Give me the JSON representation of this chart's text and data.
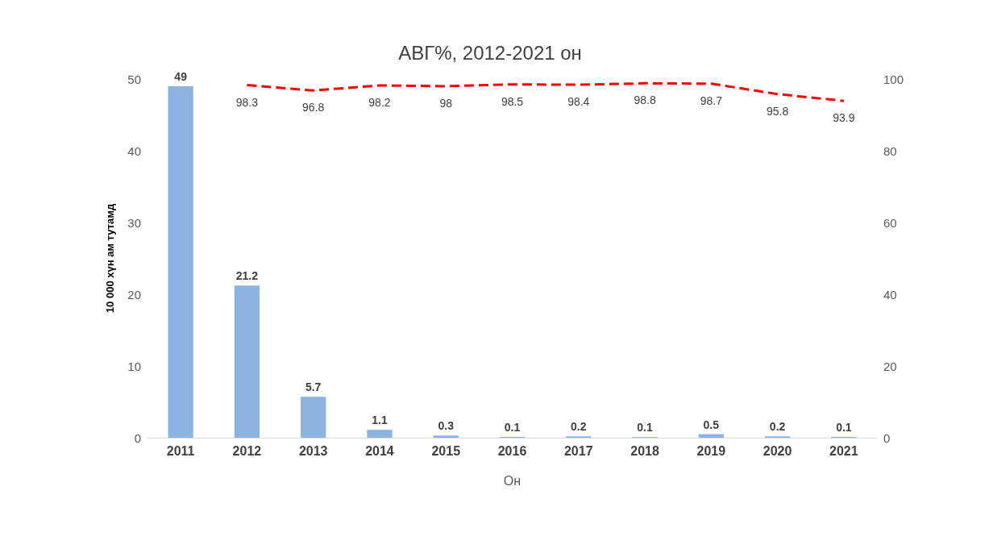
{
  "chart_data": {
    "type": "bar",
    "title": "АВГ%, 2012-2021 он",
    "xlabel": "Он",
    "ylabel": "10 000 хүн ам тутамд",
    "categories": [
      "2011",
      "2012",
      "2013",
      "2014",
      "2015",
      "2016",
      "2017",
      "2018",
      "2019",
      "2020",
      "2021"
    ],
    "series": [
      {
        "color": "#8db3e2",
        "values": [
          49,
          21.2,
          5.7,
          1.1,
          0.3,
          0.1,
          0.2,
          0.1,
          0.5,
          0.2,
          0.1
        ]
      },
      {
        "type": "line",
        "axis": "y2",
        "color": "#ff0000",
        "line_style": "dashed",
        "marker": "none",
        "values": [
          null,
          98.3,
          96.8,
          98.2,
          98,
          98.5,
          98.4,
          98.8,
          98.7,
          95.8,
          93.9
        ]
      }
    ],
    "ylim": [
      0,
      50
    ],
    "yticks": [
      0,
      10,
      20,
      30,
      40,
      50
    ],
    "y2lim": [
      0,
      100
    ],
    "y2ticks": [
      0,
      20,
      40,
      60,
      80,
      100
    ],
    "data_labels": true,
    "grid": false
  }
}
